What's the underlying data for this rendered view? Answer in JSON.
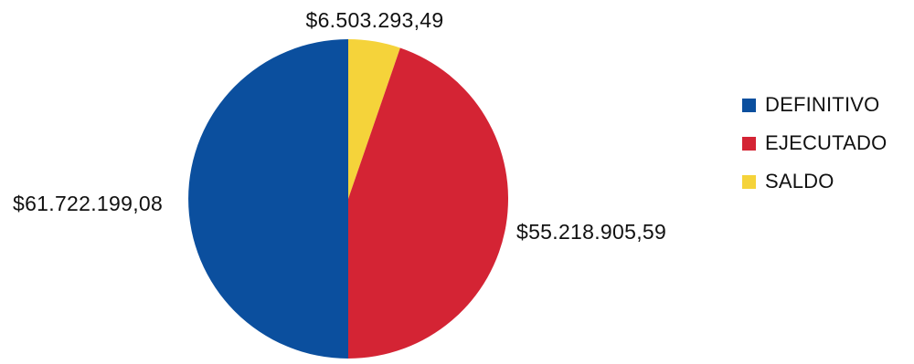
{
  "chart_data": {
    "type": "pie",
    "title": "",
    "categories": [
      "DEFINITIVO",
      "EJECUTADO",
      "SALDO"
    ],
    "values": [
      61722199.08,
      55218905.59,
      6503293.49
    ],
    "value_labels": [
      "$61.722.199,08",
      "$55.218.905,59",
      "$6.503.293,49"
    ],
    "colors": [
      "#0b4f9e",
      "#d42434",
      "#f5d33a"
    ],
    "legend_position": "right",
    "start_angle_deg": 0,
    "direction": "clockwise"
  },
  "legend": {
    "items": [
      {
        "label": "DEFINITIVO",
        "color": "#0b4f9e"
      },
      {
        "label": "EJECUTADO",
        "color": "#d42434"
      },
      {
        "label": "SALDO",
        "color": "#f5d33a"
      }
    ]
  }
}
